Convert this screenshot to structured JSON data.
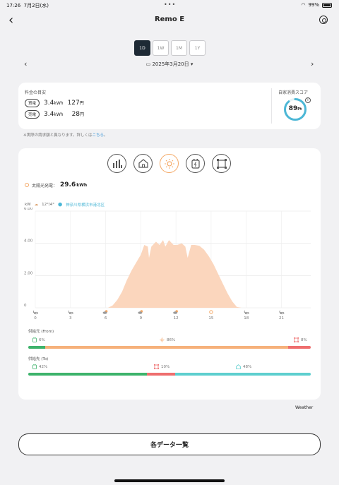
{
  "status": {
    "time": "17:26",
    "date": "7月2日(水)",
    "battery": "99%"
  },
  "header": {
    "title": "Remo E"
  },
  "periods": [
    "1D",
    "1W",
    "1M",
    "1Y"
  ],
  "date_label": "2025年3月20日",
  "summary": {
    "label": "料金の目安",
    "buy": {
      "badge": "買電",
      "value": "3.4",
      "unit": "kWh",
      "price": "127",
      "price_unit": "円"
    },
    "sell": {
      "badge": "売電",
      "value": "3.4",
      "unit": "kWh",
      "price": "28",
      "price_unit": "円"
    },
    "score_label": "自家消費スコア",
    "score": "89",
    "score_unit": "Pt",
    "score_fraction": 0.89
  },
  "note": {
    "text": "※実際の請求額と異なります。詳しくは",
    "link": "こちら",
    "tail": "。"
  },
  "categories": [
    "bar-chart-icon",
    "home-icon",
    "sun-icon",
    "battery-icon",
    "grid-icon"
  ],
  "solar": {
    "label": "太陽光発電：",
    "value": "29.6",
    "unit": "kWh"
  },
  "weather_header": {
    "unit": "kW",
    "temp": "12°/4°",
    "location": "神奈川県横浜市港北区"
  },
  "chart_data": {
    "type": "area",
    "ylabel": "kW",
    "yticks": [
      "6.00",
      "4.00",
      "2.00",
      "0"
    ],
    "ylim": [
      0,
      6
    ],
    "xlim": [
      0,
      23.5
    ],
    "xticks": [
      "0",
      "3",
      "6",
      "9",
      "12",
      "15",
      "18",
      "21"
    ],
    "x_weather": [
      "night-cloud",
      "night-cloud",
      "sun-cloud",
      "sun-cloud",
      "sun-cloud",
      "sun",
      "night-cloud",
      "night-cloud"
    ],
    "color": "#fbd6bd",
    "x": [
      6.2,
      6.6,
      7.0,
      7.4,
      7.8,
      8.2,
      8.6,
      9.0,
      9.3,
      9.6,
      9.7,
      9.9,
      10.3,
      10.6,
      10.9,
      11.1,
      11.4,
      11.8,
      12.1,
      12.5,
      12.8,
      13.0,
      13.3,
      13.6,
      14.0,
      14.4,
      14.8,
      15.2,
      15.6,
      16.0,
      16.4,
      16.8,
      17.2,
      17.6
    ],
    "y": [
      0,
      0.15,
      0.5,
      1.0,
      1.7,
      2.3,
      2.8,
      3.3,
      3.9,
      3.8,
      3.1,
      3.8,
      4.1,
      3.9,
      4.2,
      3.8,
      4.2,
      3.9,
      3.9,
      4.0,
      3.8,
      3.1,
      3.9,
      3.9,
      3.85,
      3.6,
      3.2,
      2.7,
      2.1,
      1.5,
      0.9,
      0.4,
      0.05,
      0
    ]
  },
  "supply_from": {
    "label": "供給元 (From)",
    "segments": [
      {
        "icon": "battery-icon",
        "label": "6%",
        "value": 6,
        "color": "#3db36b"
      },
      {
        "icon": "sun-icon",
        "label": "86%",
        "value": 86,
        "color": "#f6b17b"
      },
      {
        "icon": "grid-icon",
        "label": "8%",
        "value": 8,
        "color": "#ee6e6e"
      }
    ]
  },
  "supply_to": {
    "label": "供給先 (To)",
    "segments": [
      {
        "icon": "battery-icon",
        "label": "42%",
        "value": 42,
        "color": "#3db36b"
      },
      {
        "icon": "grid-icon",
        "label": "10%",
        "value": 10,
        "color": "#ee6e6e"
      },
      {
        "icon": "home-icon",
        "label": "48%",
        "value": 48,
        "color": "#5ecfcf"
      }
    ]
  },
  "weather_credit": "Weather",
  "list_button": "各データ一覧"
}
